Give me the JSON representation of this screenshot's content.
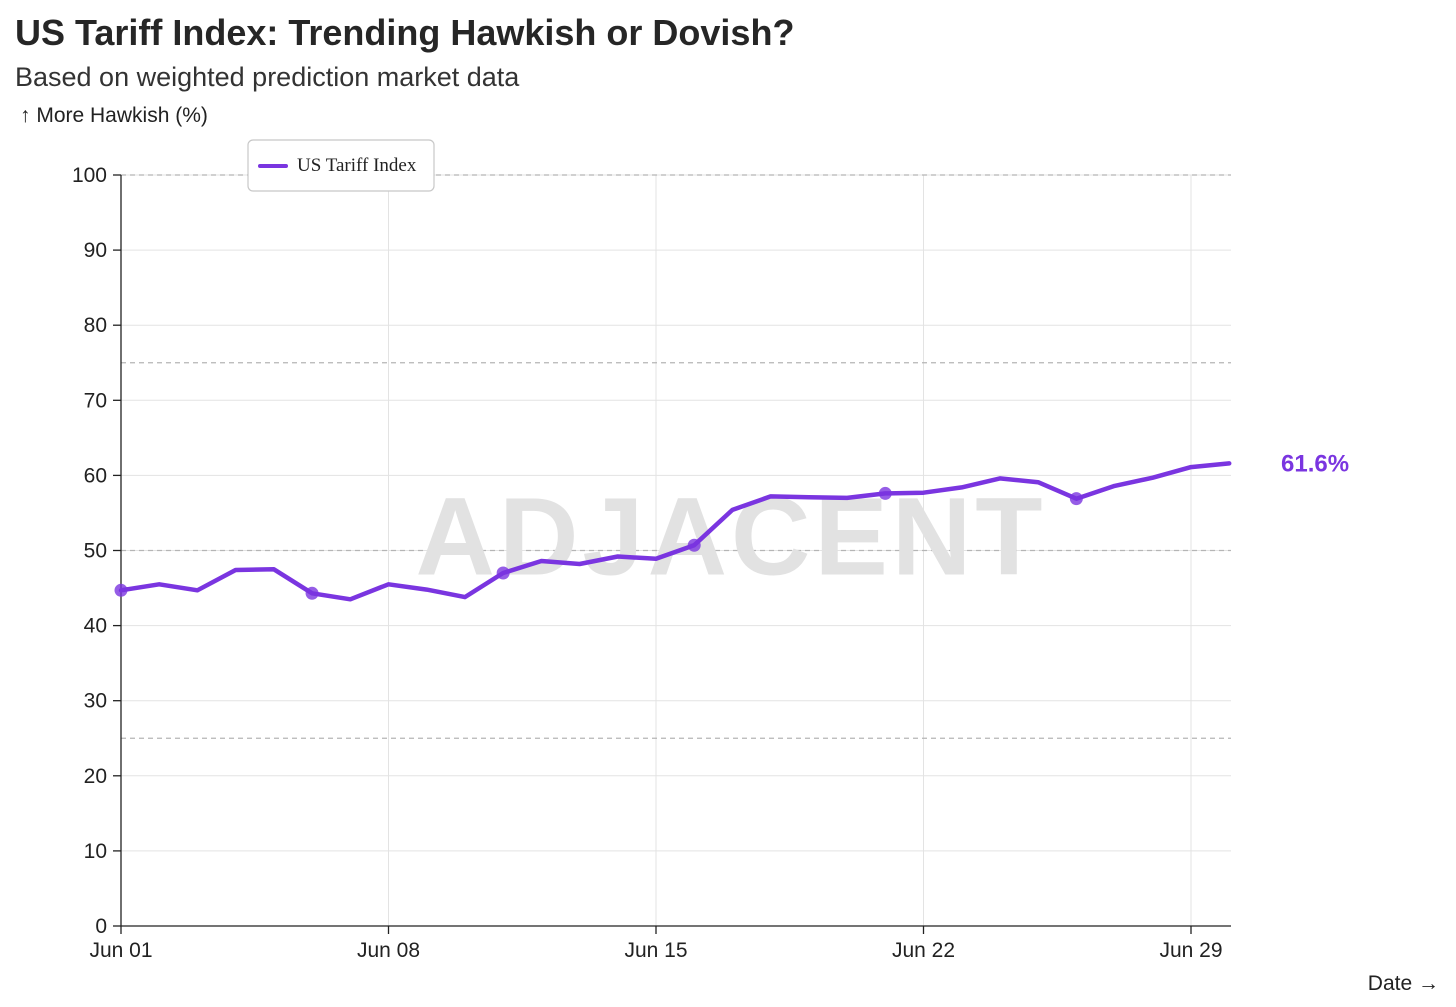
{
  "title": "US Tariff Index: Trending Hawkish or Dovish?",
  "subtitle": "Based on weighted prediction market data",
  "chart_data": {
    "type": "line",
    "title": "US Tariff Index: Trending Hawkish or Dovish?",
    "subtitle": "Based on weighted prediction market data",
    "ylabel": "↑ More Hawkish (%)",
    "xlabel": "Date →",
    "ylim": [
      0,
      100
    ],
    "yticks": [
      0,
      10,
      20,
      30,
      40,
      50,
      60,
      70,
      80,
      90,
      100
    ],
    "reference_lines": [
      25,
      50,
      75,
      100
    ],
    "xticks": [
      {
        "date": "2025-06-01",
        "label": "Jun 01"
      },
      {
        "date": "2025-06-08",
        "label": "Jun 08"
      },
      {
        "date": "2025-06-15",
        "label": "Jun 15"
      },
      {
        "date": "2025-06-22",
        "label": "Jun 22"
      },
      {
        "date": "2025-06-29",
        "label": "Jun 29"
      }
    ],
    "xrange": [
      "2025-06-01",
      "2025-06-30"
    ],
    "watermark": "ADJACENT",
    "legend": {
      "position": "top-left",
      "entries": [
        "US Tariff Index"
      ]
    },
    "series": [
      {
        "name": "US Tariff Index",
        "color": "#7a35e0",
        "last_label": "61.6%",
        "points": [
          {
            "x": "2025-06-01",
            "y": 44.7,
            "marker": true
          },
          {
            "x": "2025-06-02",
            "y": 45.5
          },
          {
            "x": "2025-06-03",
            "y": 44.7
          },
          {
            "x": "2025-06-04",
            "y": 47.4
          },
          {
            "x": "2025-06-05",
            "y": 47.5
          },
          {
            "x": "2025-06-06",
            "y": 44.3,
            "marker": true
          },
          {
            "x": "2025-06-07",
            "y": 43.5
          },
          {
            "x": "2025-06-08",
            "y": 45.5
          },
          {
            "x": "2025-06-09",
            "y": 44.8
          },
          {
            "x": "2025-06-10",
            "y": 43.8
          },
          {
            "x": "2025-06-11",
            "y": 47.0,
            "marker": true
          },
          {
            "x": "2025-06-12",
            "y": 48.6
          },
          {
            "x": "2025-06-13",
            "y": 48.2
          },
          {
            "x": "2025-06-14",
            "y": 49.2
          },
          {
            "x": "2025-06-15",
            "y": 48.9
          },
          {
            "x": "2025-06-16",
            "y": 50.7,
            "marker": true
          },
          {
            "x": "2025-06-17",
            "y": 55.4
          },
          {
            "x": "2025-06-18",
            "y": 57.2
          },
          {
            "x": "2025-06-19",
            "y": 57.1
          },
          {
            "x": "2025-06-20",
            "y": 57.0
          },
          {
            "x": "2025-06-21",
            "y": 57.6,
            "marker": true
          },
          {
            "x": "2025-06-22",
            "y": 57.7
          },
          {
            "x": "2025-06-23",
            "y": 58.4
          },
          {
            "x": "2025-06-24",
            "y": 59.6
          },
          {
            "x": "2025-06-25",
            "y": 59.1
          },
          {
            "x": "2025-06-26",
            "y": 56.9,
            "marker": true
          },
          {
            "x": "2025-06-27",
            "y": 58.6
          },
          {
            "x": "2025-06-28",
            "y": 59.7
          },
          {
            "x": "2025-06-29",
            "y": 61.1
          },
          {
            "x": "2025-06-30",
            "y": 61.6
          }
        ]
      }
    ]
  }
}
